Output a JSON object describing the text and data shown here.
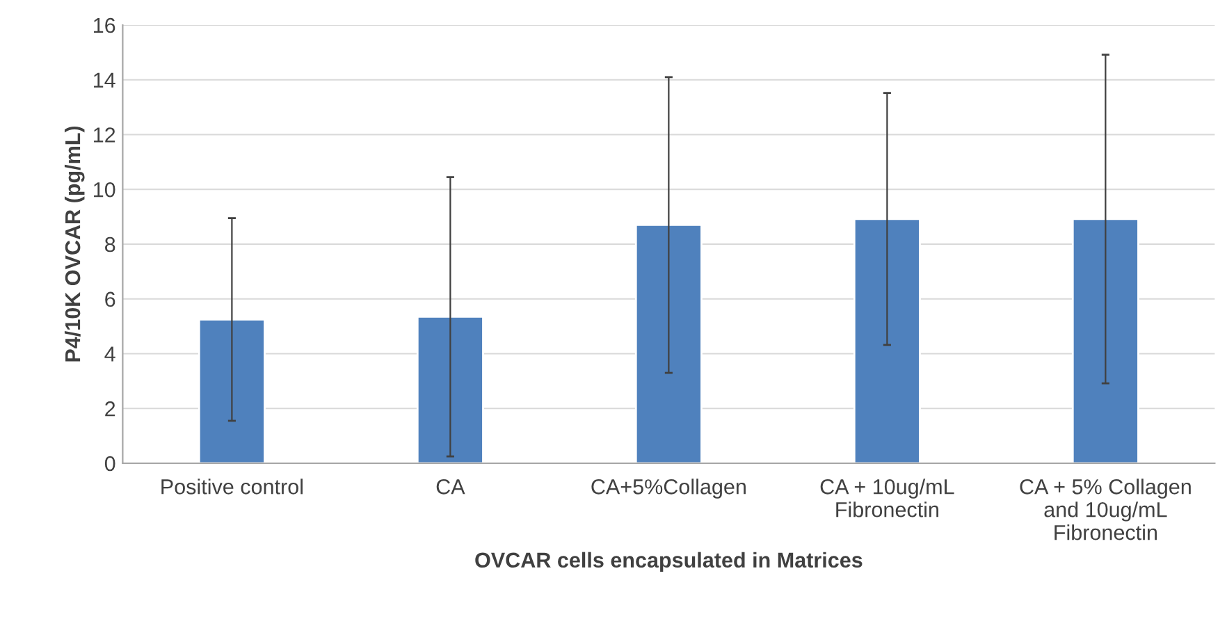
{
  "chart_data": {
    "type": "bar",
    "xlabel": "OVCAR cells encapsulated in Matrices",
    "ylabel": "P4/10K OVCAR (pg/mL)",
    "categories": [
      "Positive control",
      "CA",
      "CA+5%Collagen",
      "CA + 10ug/mL\nFibronectin",
      "CA + 5% Collagen\nand 10ug/mL\nFibronectin"
    ],
    "values": [
      5.25,
      5.35,
      8.7,
      8.92,
      8.92
    ],
    "errors": [
      3.7,
      5.1,
      5.4,
      4.6,
      6.0
    ],
    "color": "#4f81bd",
    "ylim": [
      0,
      16
    ],
    "yticks": [
      0,
      2,
      4,
      6,
      8,
      10,
      12,
      14,
      16
    ],
    "grid": "y",
    "legend": false
  }
}
